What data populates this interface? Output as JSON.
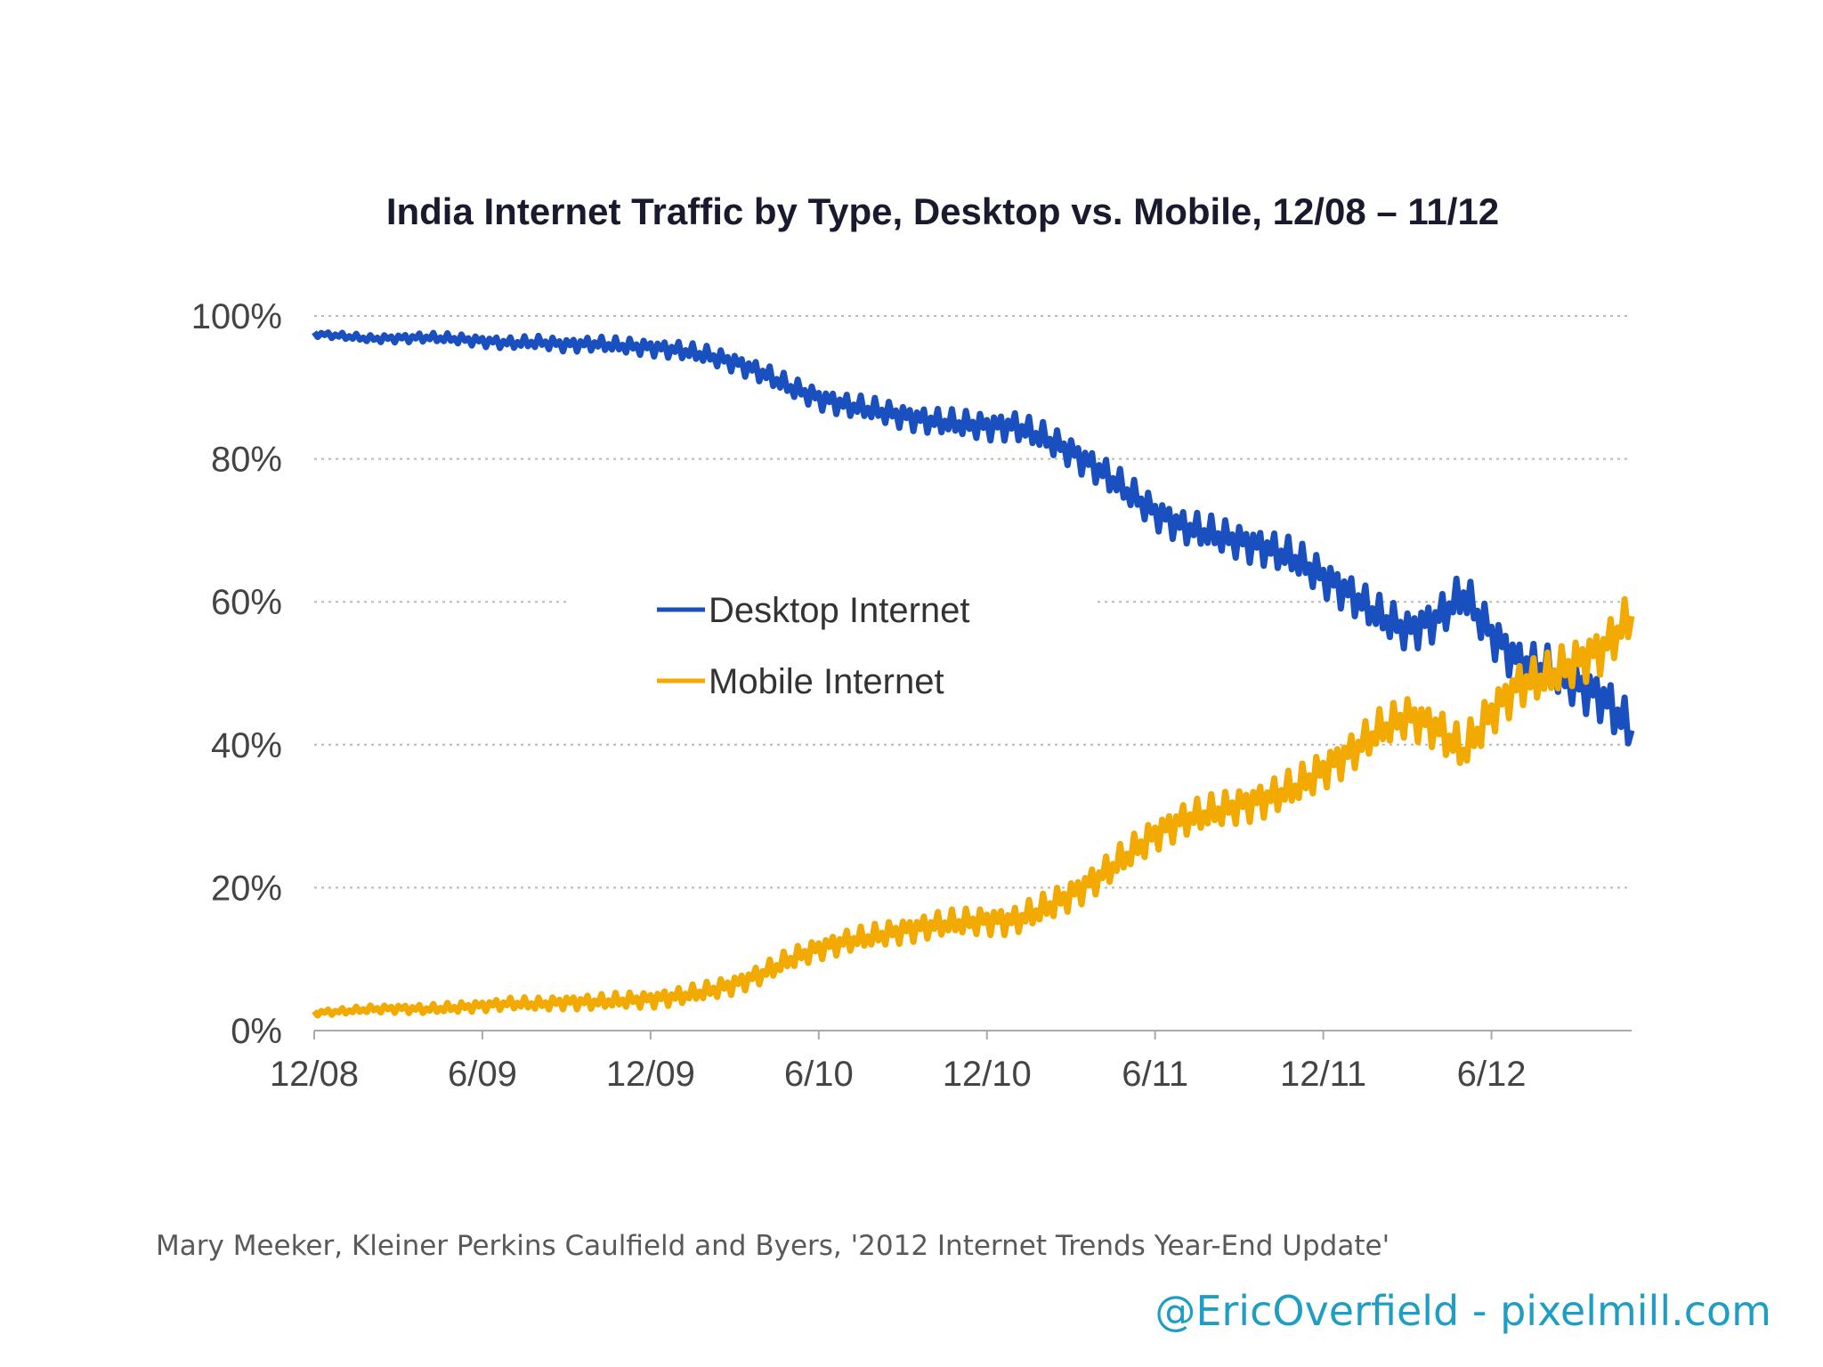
{
  "chart_data": {
    "type": "line",
    "title": "India Internet Traffic by Type, Desktop vs. Mobile, 12/08 – 11/12",
    "xlabel": "",
    "ylabel": "",
    "x_ticks": [
      "12/08",
      "6/09",
      "12/09",
      "6/10",
      "12/10",
      "6/11",
      "12/11",
      "6/12"
    ],
    "x_range_months": [
      0,
      47
    ],
    "y_ticks": [
      "0%",
      "20%",
      "40%",
      "60%",
      "80%",
      "100%"
    ],
    "ylim": [
      0,
      100
    ],
    "grid": true,
    "legend_position": "center",
    "x_months": [
      0,
      1,
      2,
      3,
      4,
      5,
      6,
      7,
      8,
      9,
      10,
      11,
      12,
      13,
      14,
      15,
      16,
      17,
      18,
      19,
      20,
      21,
      22,
      23,
      24,
      25,
      26,
      27,
      28,
      29,
      30,
      31,
      32,
      33,
      34,
      35,
      36,
      37,
      38,
      39,
      40,
      41,
      42,
      43,
      44,
      45,
      46,
      47
    ],
    "series": [
      {
        "name": "Desktop Internet",
        "color": "#1a4fbf",
        "values": [
          97.5,
          97.2,
          96.8,
          96.9,
          97.0,
          96.8,
          96.5,
          96.2,
          96.3,
          96.0,
          96.1,
          95.8,
          95.6,
          95.2,
          94.5,
          93.5,
          92.0,
          90.0,
          88.5,
          87.5,
          86.8,
          86.0,
          85.3,
          84.9,
          84.6,
          84.6,
          83.0,
          81.0,
          78.5,
          75.5,
          72.5,
          70.5,
          69.5,
          68.5,
          67.5,
          66.0,
          63.5,
          61.0,
          58.0,
          56.0,
          57.5,
          61.0,
          55.5,
          51.5,
          50.5,
          48.5,
          46.5,
          42.0
        ]
      },
      {
        "name": "Mobile Internet",
        "color": "#f2a900",
        "values": [
          2.5,
          2.7,
          3.0,
          3.1,
          3.0,
          3.2,
          3.5,
          3.8,
          3.7,
          4.0,
          4.0,
          4.2,
          4.4,
          4.8,
          5.5,
          6.5,
          8.0,
          10.0,
          11.5,
          12.5,
          13.2,
          14.0,
          14.7,
          15.1,
          15.4,
          15.4,
          17.0,
          19.0,
          21.5,
          24.5,
          27.5,
          29.5,
          30.5,
          31.5,
          32.5,
          34.0,
          36.5,
          39.0,
          42.0,
          44.0,
          42.5,
          39.0,
          44.5,
          48.5,
          49.5,
          51.5,
          53.5,
          58.0
        ]
      }
    ]
  },
  "source": "Mary Meeker, Kleiner Perkins Caulfield and Byers, '2012 Internet Trends Year-End Update'",
  "credit": "@EricOverfield - pixelmill.com"
}
